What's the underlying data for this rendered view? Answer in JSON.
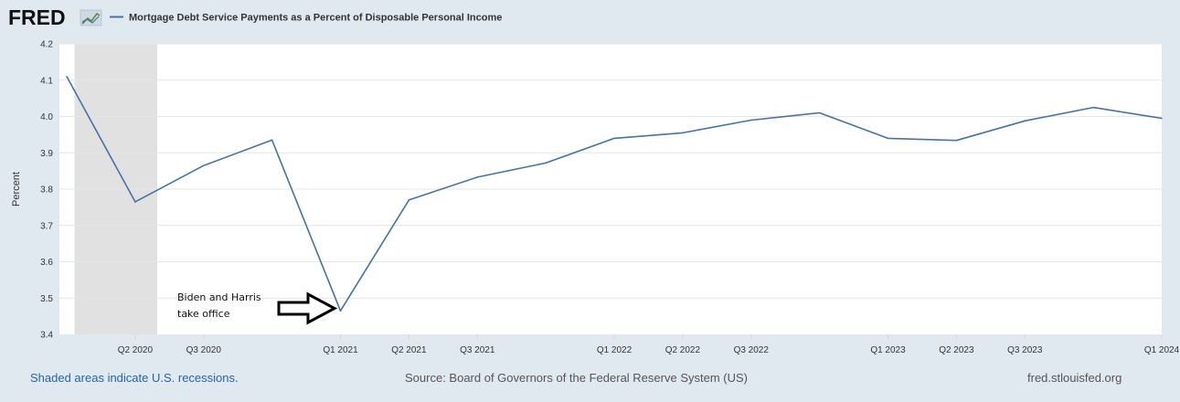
{
  "logo": {
    "text": "FRED"
  },
  "colors": {
    "line": "#4572a7",
    "recession": "#e1e1e1",
    "plot_bg": "#ffffff",
    "page_bg": "#e1e9f0",
    "grid": "#e6e6e6"
  },
  "chart_data": {
    "type": "line",
    "title": "Mortgage Debt Service Payments as a Percent of Disposable Personal Income",
    "ylabel": "Percent",
    "xlabel": "",
    "ylim": [
      3.4,
      4.2
    ],
    "yticks": [
      "3.4",
      "3.5",
      "3.6",
      "3.7",
      "3.8",
      "3.9",
      "4.0",
      "4.1",
      "4.2"
    ],
    "xticks": [
      "Q2 2020",
      "Q3 2020",
      "Q1 2021",
      "Q2 2021",
      "Q3 2021",
      "Q1 2022",
      "Q2 2022",
      "Q3 2022",
      "Q1 2023",
      "Q2 2023",
      "Q3 2023",
      "Q1 2024"
    ],
    "x": [
      "Q1 2020",
      "Q2 2020",
      "Q3 2020",
      "Q4 2020",
      "Q1 2021",
      "Q2 2021",
      "Q3 2021",
      "Q4 2021",
      "Q1 2022",
      "Q2 2022",
      "Q3 2022",
      "Q4 2022",
      "Q1 2023",
      "Q2 2023",
      "Q3 2023",
      "Q4 2023",
      "Q1 2024"
    ],
    "series": [
      {
        "values": [
          4.11,
          3.765,
          3.865,
          3.935,
          3.465,
          3.77,
          3.833,
          3.872,
          3.94,
          3.955,
          3.99,
          4.01,
          3.94,
          3.934,
          3.988,
          4.025,
          3.995
        ]
      }
    ],
    "recessions": [
      [
        "2020-02-01",
        "2020-04-30"
      ]
    ],
    "grid": true,
    "annotation": {
      "text_lines": [
        "Biden and Harris",
        "take office"
      ],
      "target": "Q1 2021"
    }
  },
  "footer": {
    "left": "Shaded areas indicate U.S. recessions.",
    "center": "Source: Board of Governors of the Federal Reserve System (US)",
    "right": "fred.stlouisfed.org"
  }
}
